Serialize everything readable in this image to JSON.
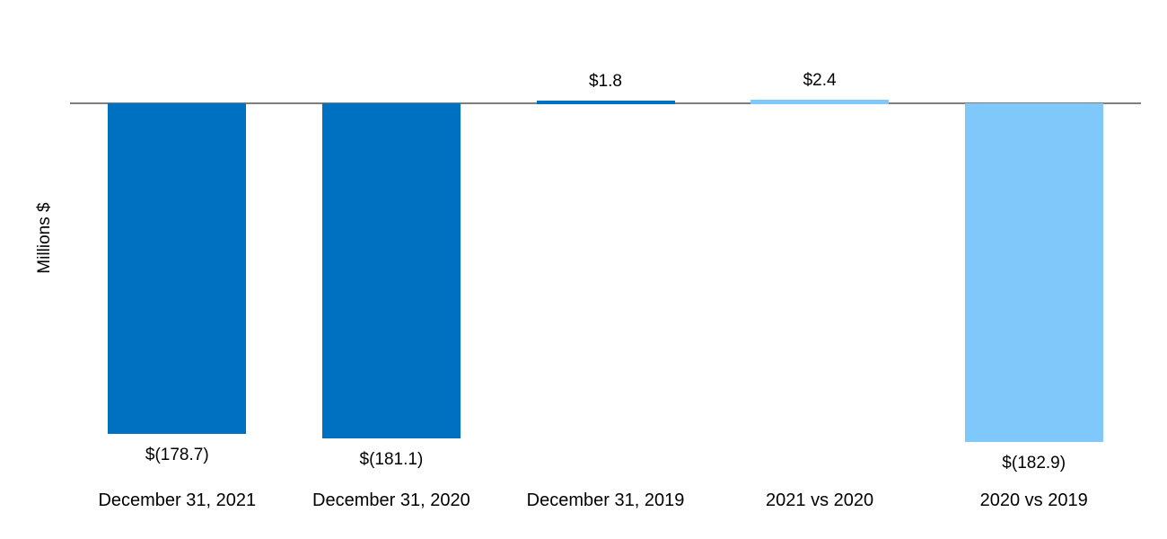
{
  "chart_data": {
    "type": "bar",
    "title": "",
    "xlabel": "",
    "ylabel": "Millions $",
    "categories": [
      "December 31, 2021",
      "December 31, 2020",
      "December 31, 2019",
      "2021 vs 2020",
      "2020 vs 2019"
    ],
    "values": [
      -178.7,
      -181.1,
      1.8,
      2.4,
      -182.9
    ],
    "value_labels": [
      "$(178.7)",
      "$(181.1)",
      "$1.8",
      "$2.4",
      "$(182.9)"
    ],
    "bar_colors": [
      "#0070C0",
      "#0070C0",
      "#0070C0",
      "#7FC8FA",
      "#7FC8FA"
    ],
    "axis_line_color": "#7F7F7F",
    "text_color": "#000000",
    "grid": "off",
    "legend": "none",
    "baseline": 0,
    "ylim": [
      -190,
      20
    ]
  }
}
